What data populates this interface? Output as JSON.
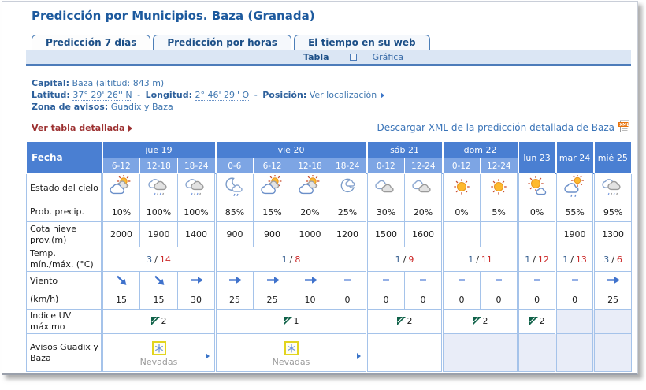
{
  "page": {
    "title": "Predicción por Municipios. Baza (Granada)"
  },
  "tabs": [
    {
      "label": "Predicción 7 días",
      "active": true
    },
    {
      "label": "Predicción por horas",
      "active": false
    },
    {
      "label": "El tiempo en su web",
      "active": false
    }
  ],
  "view_toggle": {
    "tabla": "Tabla",
    "grafica": "Gráfica"
  },
  "info": {
    "capital_label": "Capital:",
    "capital_value": "Baza (altitud: 843 m)",
    "latitud_label": "Latitud:",
    "latitud_value": "37° 29' 26'' N",
    "sep1": "-",
    "longitud_label": "Longitud:",
    "longitud_value": "2° 46' 29'' O",
    "sep2": "-",
    "posicion_label": "Posición:",
    "posicion_link": "Ver localización",
    "zona_label": "Zona de avisos:",
    "zona_value": "Guadix y Baza"
  },
  "links": {
    "ver_tabla_detallada": "Ver tabla detallada",
    "descargar_xml": "Descargar XML de la predicción detallada de Baza"
  },
  "table": {
    "fecha_label": "Fecha",
    "days": [
      {
        "label": "jue 19",
        "periods": [
          "6-12",
          "12-18",
          "18-24"
        ]
      },
      {
        "label": "vie 20",
        "periods": [
          "0-6",
          "6-12",
          "12-18",
          "18-24"
        ]
      },
      {
        "label": "sáb 21",
        "periods": [
          "0-12",
          "12-24"
        ]
      },
      {
        "label": "dom 22",
        "periods": [
          "0-12",
          "12-24"
        ]
      },
      {
        "label": "lun 23",
        "periods": []
      },
      {
        "label": "mar 24",
        "periods": []
      },
      {
        "label": "mié 25",
        "periods": []
      }
    ],
    "rows": {
      "estado": {
        "label": "Estado del cielo",
        "icons": [
          "sun-cloud-icon",
          "cloud-snow-icon",
          "cloud-snow-icon",
          "moon-cloud-rain-icon",
          "sun-cloud-icon",
          "sun-cloud-icon",
          "moon-cloud-icon",
          "clouds-icon",
          "clouds-icon",
          "sun-icon",
          "sun-icon",
          "sun-small-cloud-icon",
          "sun-cloud-drizzle-icon",
          "cloud-snow-icon"
        ]
      },
      "prob": {
        "label": "Prob. precip.",
        "values": [
          "10%",
          "100%",
          "100%",
          "85%",
          "15%",
          "20%",
          "25%",
          "30%",
          "20%",
          "0%",
          "5%",
          "0%",
          "55%",
          "95%"
        ]
      },
      "cota": {
        "label": "Cota nieve prov.(m)",
        "values": [
          "2000",
          "1900",
          "1400",
          "900",
          "900",
          "1000",
          "1200",
          "1500",
          "1600",
          "",
          "",
          "",
          "1900",
          "1300"
        ]
      },
      "temp": {
        "label": "Temp. mín./máx. (°C)",
        "sep": "/",
        "values": [
          {
            "min": "3",
            "max": "14"
          },
          {
            "min": "1",
            "max": "8"
          },
          {
            "min": "1",
            "max": "9"
          },
          {
            "min": "1",
            "max": "11"
          },
          {
            "min": "1",
            "max": "12"
          },
          {
            "min": "1",
            "max": "13"
          },
          {
            "min": "3",
            "max": "6"
          }
        ]
      },
      "viento": {
        "label": "Viento",
        "directions": [
          "SE",
          "SE",
          "E",
          "E",
          "E",
          "E",
          "CALM",
          "CALM",
          "CALM",
          "CALM",
          "CALM",
          "CALM",
          "CALM",
          "E"
        ]
      },
      "kmh": {
        "label": "(km/h)",
        "values": [
          "15",
          "15",
          "30",
          "25",
          "25",
          "10",
          "0",
          "0",
          "0",
          "0",
          "0",
          "0",
          "0",
          "25"
        ]
      },
      "uv": {
        "label": "Indice UV máximo",
        "values": [
          {
            "value": "2",
            "no_data": false
          },
          {
            "value": "1",
            "no_data": false
          },
          {
            "value": "2",
            "no_data": false
          },
          {
            "value": "2",
            "no_data": false
          },
          {
            "value": "2",
            "no_data": false
          },
          {
            "value": "",
            "no_data": true
          },
          {
            "value": "",
            "no_data": true
          }
        ]
      },
      "avisos": {
        "label": "Avisos Guadix y Baza",
        "values": [
          {
            "label": "Nevadas",
            "warning": true,
            "no_data": false
          },
          {
            "label": "Nevadas",
            "warning": true,
            "no_data": false
          },
          {
            "label": "",
            "warning": false,
            "no_data": false
          },
          {
            "label": "",
            "warning": false,
            "no_data": true
          },
          {
            "label": "",
            "warning": false,
            "no_data": true
          },
          {
            "label": "",
            "warning": false,
            "no_data": true
          },
          {
            "label": "",
            "warning": false,
            "no_data": true
          }
        ]
      }
    }
  },
  "colors": {
    "header_blue": "#4a7fd2",
    "subheader_blue": "#7da5e4",
    "cell_border": "#a5c3ea",
    "no_data_bg": "#e9edf8",
    "temp_min": "#376091",
    "temp_max": "#cc2929",
    "warning_yellow": "#e2d41e",
    "link_blue": "#3a74b8",
    "alert_red": "#9c3030",
    "wind_arrow_blue": "#3f72cc"
  }
}
